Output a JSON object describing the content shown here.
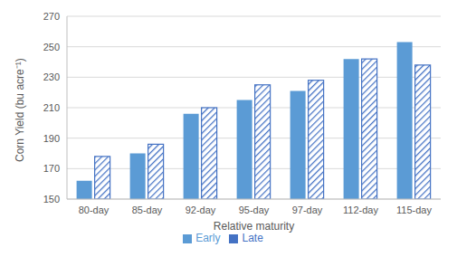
{
  "chart_data": {
    "type": "bar",
    "x_label": "Relative maturity",
    "y_label": "Corn Yield (bu acre⁻¹)",
    "categories": [
      "80-day",
      "85-day",
      "92-day",
      "95-day",
      "97-day",
      "112-day",
      "115-day"
    ],
    "series": [
      {
        "name": "Early",
        "color": "#5b9bd5",
        "values": [
          162,
          180,
          206,
          215,
          221,
          242,
          253
        ]
      },
      {
        "name": "Late",
        "color": "#4472c4",
        "values": [
          178,
          186,
          210,
          225,
          228,
          242,
          238
        ]
      }
    ],
    "ylim": [
      150,
      270
    ],
    "yticks": [
      150,
      170,
      190,
      210,
      230,
      250,
      270
    ],
    "grid": true,
    "legend": "bottom"
  }
}
